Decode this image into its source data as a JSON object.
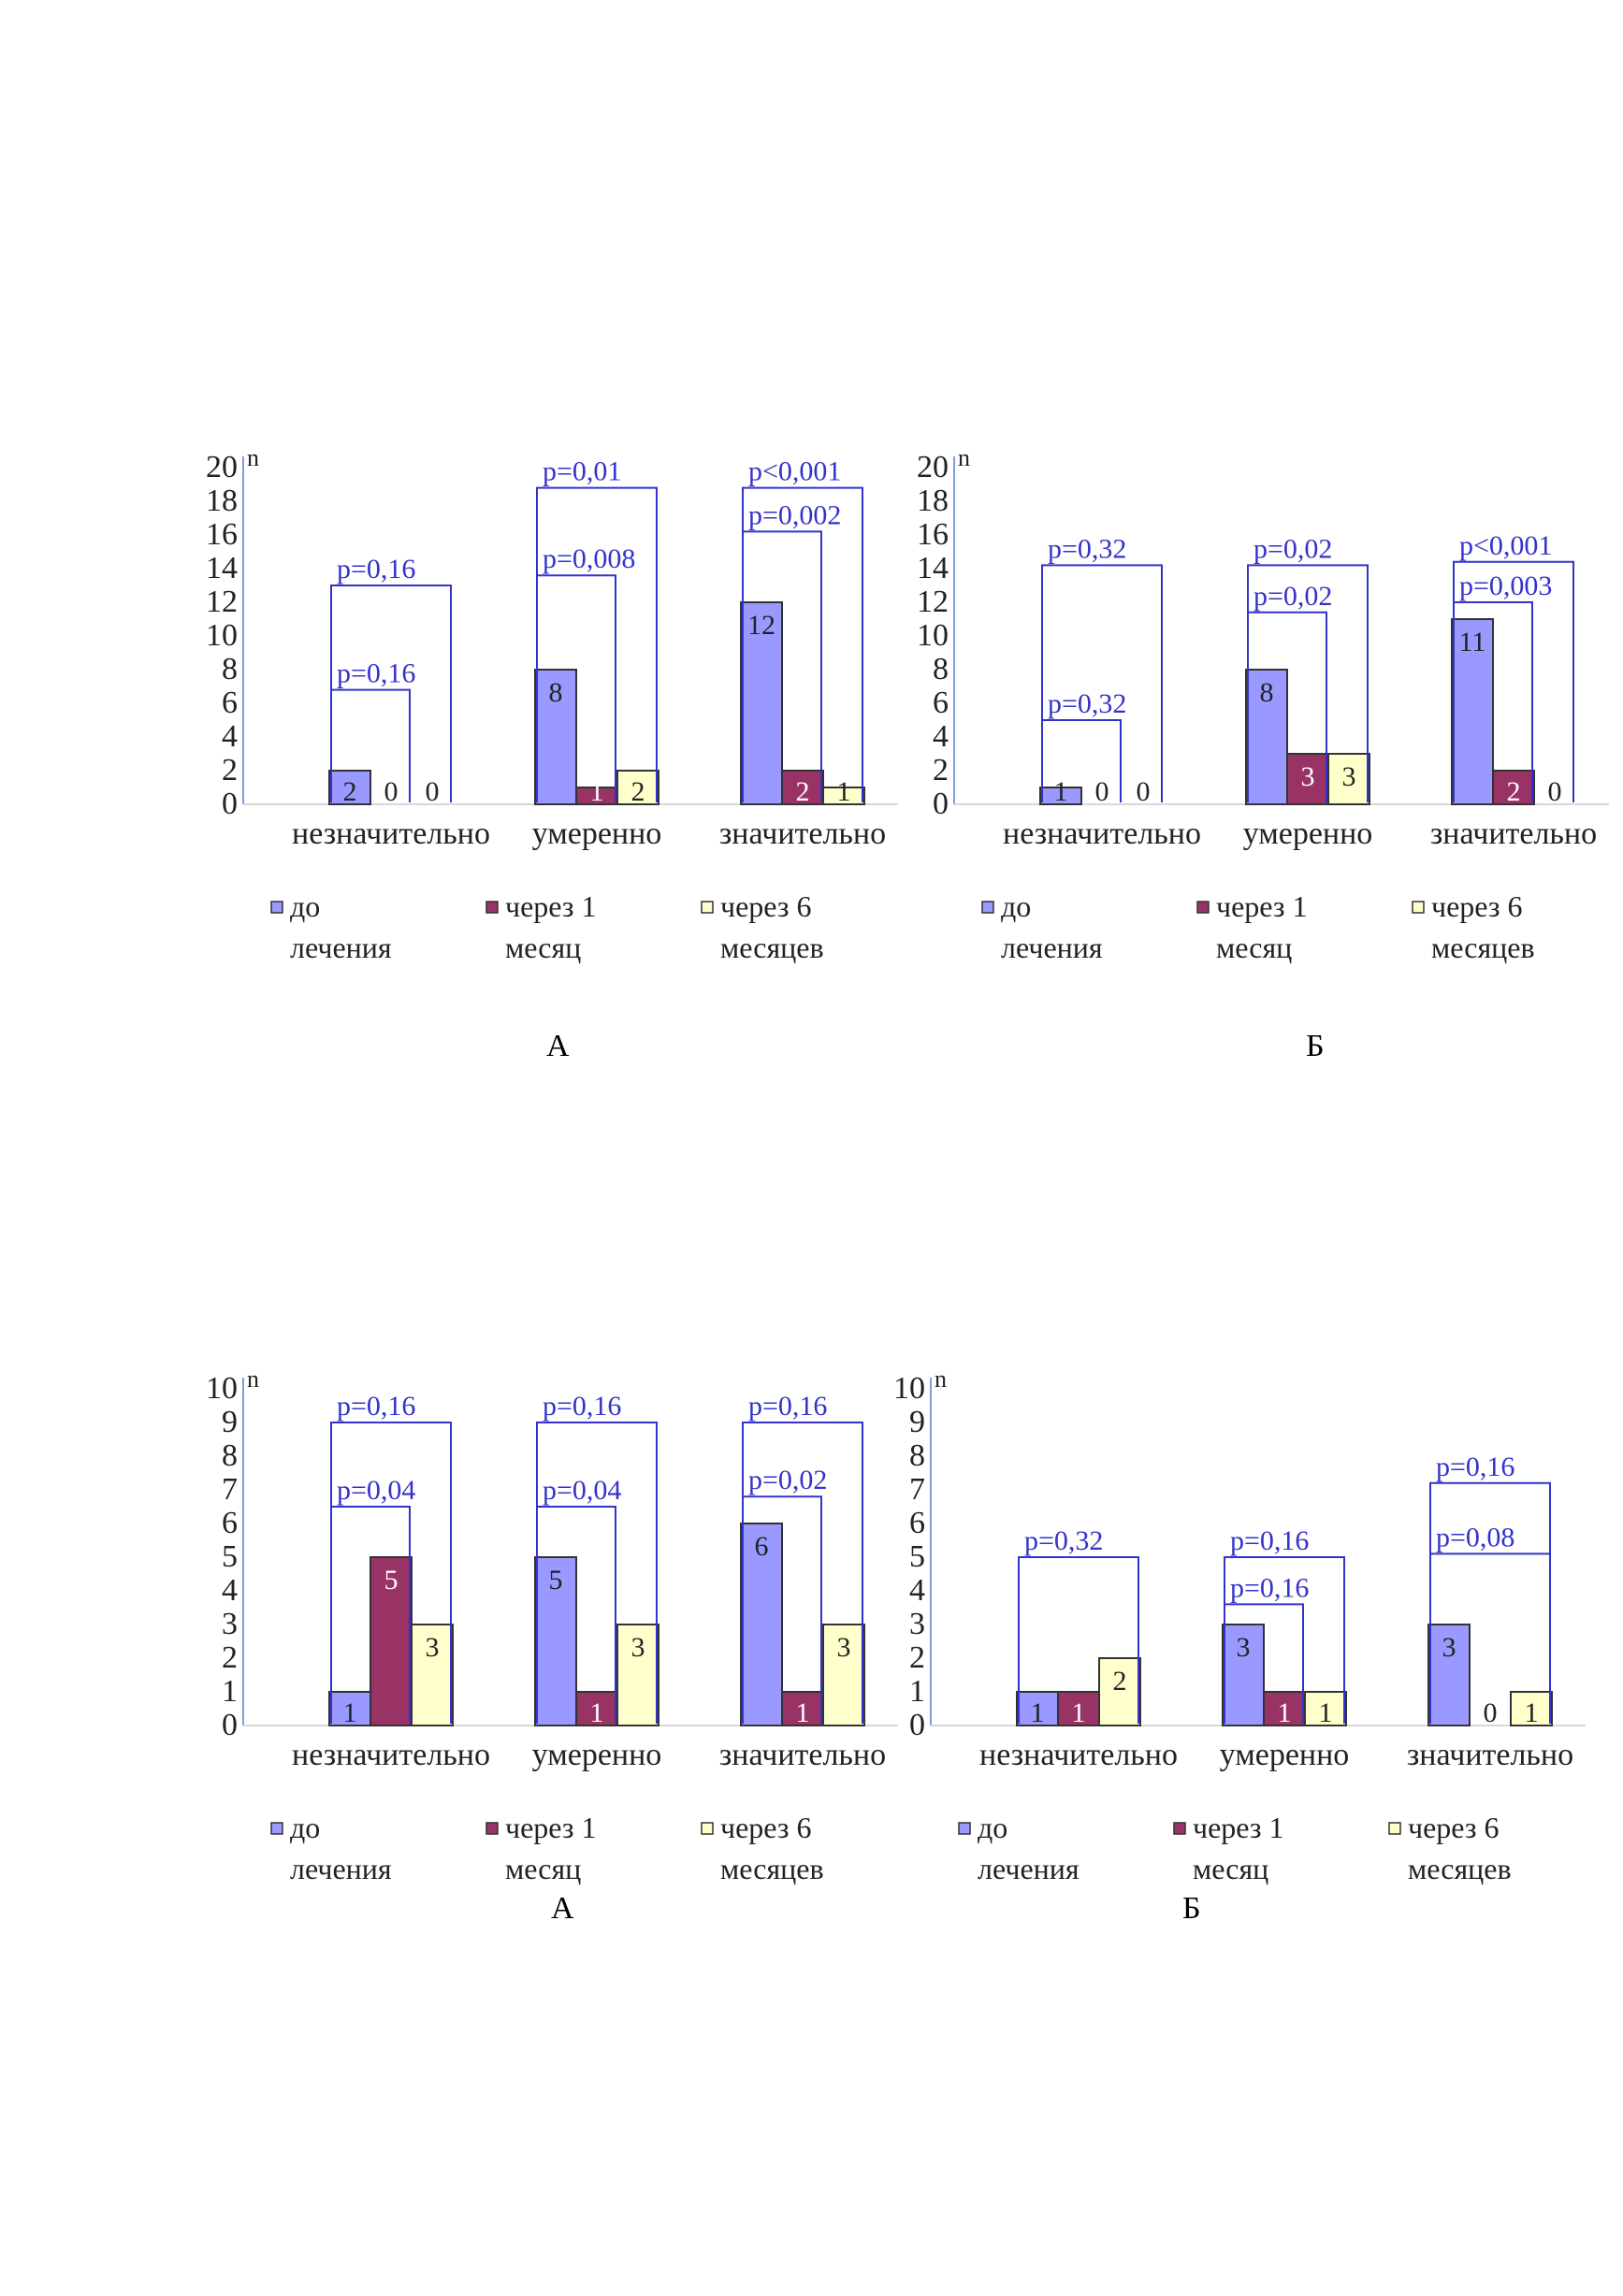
{
  "colors": {
    "before": "#9999ff",
    "month1": "#993366",
    "month6": "#ffffcc",
    "pvalue": "#3333cc",
    "axis": "#7f9fdf"
  },
  "legend": [
    {
      "line1": "до",
      "line2": "лечения"
    },
    {
      "line1": "через 1",
      "line2": "месяц"
    },
    {
      "line1": "через 6",
      "line2": "месяцев"
    }
  ],
  "panels": [
    "А",
    "Б",
    "А",
    "Б"
  ],
  "chart_data": [
    {
      "type": "bar",
      "ylabel": "n",
      "ylim": [
        0,
        20
      ],
      "yticks": [
        "0",
        "2",
        "4",
        "6",
        "8",
        "10",
        "12",
        "14",
        "16",
        "18",
        "20"
      ],
      "categories": [
        "незначительно",
        "умеренно",
        "значительно"
      ],
      "series": [
        {
          "name": "до лечения",
          "values": [
            2,
            8,
            12
          ]
        },
        {
          "name": "через 1 месяц",
          "values": [
            0,
            1,
            2
          ]
        },
        {
          "name": "через 6 месяцев",
          "values": [
            0,
            2,
            1
          ]
        }
      ],
      "brackets": [
        {
          "category": 0,
          "to": 1,
          "level": 6.8,
          "text": "p=0,16"
        },
        {
          "category": 0,
          "to": 2,
          "level": 13,
          "text": "p=0,16"
        },
        {
          "category": 1,
          "to": 1,
          "level": 13.6,
          "text": "p=0,008"
        },
        {
          "category": 1,
          "to": 2,
          "level": 18.8,
          "text": "p=0,01"
        },
        {
          "category": 2,
          "to": 1,
          "level": 16.2,
          "text": "p=0,002"
        },
        {
          "category": 2,
          "to": 2,
          "level": 18.8,
          "text": "p<0,001"
        }
      ]
    },
    {
      "type": "bar",
      "ylabel": "n",
      "ylim": [
        0,
        20
      ],
      "yticks": [
        "0",
        "2",
        "4",
        "6",
        "8",
        "10",
        "12",
        "14",
        "16",
        "18",
        "20"
      ],
      "categories": [
        "незначительно",
        "умеренно",
        "значительно"
      ],
      "series": [
        {
          "name": "до лечения",
          "values": [
            1,
            8,
            11
          ]
        },
        {
          "name": "через 1 месяц",
          "values": [
            0,
            3,
            2
          ]
        },
        {
          "name": "через 6 месяцев",
          "values": [
            0,
            3,
            0
          ]
        }
      ],
      "brackets": [
        {
          "category": 0,
          "to": 1,
          "level": 5,
          "text": "p=0,32"
        },
        {
          "category": 0,
          "to": 2,
          "level": 14.2,
          "text": "p=0,32"
        },
        {
          "category": 1,
          "to": 1,
          "level": 11.4,
          "text": "p=0,02"
        },
        {
          "category": 1,
          "to": 2,
          "level": 14.2,
          "text": "p=0,02"
        },
        {
          "category": 2,
          "to": 1,
          "level": 12,
          "text": "p=0,003"
        },
        {
          "category": 2,
          "to": 2,
          "level": 14.4,
          "text": "p<0,001"
        }
      ]
    },
    {
      "type": "bar",
      "ylabel": "n",
      "ylim": [
        0,
        10
      ],
      "yticks": [
        "0",
        "1",
        "2",
        "3",
        "4",
        "5",
        "6",
        "7",
        "8",
        "9",
        "10"
      ],
      "categories": [
        "незначительно",
        "умеренно",
        "значительно"
      ],
      "series": [
        {
          "name": "до лечения",
          "values": [
            1,
            5,
            6
          ]
        },
        {
          "name": "через 1 месяц",
          "values": [
            5,
            1,
            1
          ]
        },
        {
          "name": "через 6 месяцев",
          "values": [
            3,
            3,
            3
          ]
        }
      ],
      "brackets": [
        {
          "category": 0,
          "to": 1,
          "level": 6.5,
          "text": "p=0,04"
        },
        {
          "category": 0,
          "to": 2,
          "level": 9,
          "text": "p=0,16"
        },
        {
          "category": 1,
          "to": 1,
          "level": 6.5,
          "text": "p=0,04"
        },
        {
          "category": 1,
          "to": 2,
          "level": 9,
          "text": "p=0,16"
        },
        {
          "category": 2,
          "to": 1,
          "level": 6.8,
          "text": "p=0,02"
        },
        {
          "category": 2,
          "to": 2,
          "level": 9,
          "text": "p=0,16"
        }
      ]
    },
    {
      "type": "bar",
      "ylabel": "n",
      "ylim": [
        0,
        10
      ],
      "yticks": [
        "0",
        "1",
        "2",
        "3",
        "4",
        "5",
        "6",
        "7",
        "8",
        "9",
        "10"
      ],
      "categories": [
        "незначительно",
        "умеренно",
        "значительно"
      ],
      "series": [
        {
          "name": "до лечения",
          "values": [
            1,
            3,
            3
          ]
        },
        {
          "name": "через 1 месяц",
          "values": [
            1,
            1,
            0
          ]
        },
        {
          "name": "через 6 месяцев",
          "values": [
            2,
            1,
            1
          ]
        }
      ],
      "brackets": [
        {
          "category": 0,
          "to": 2,
          "level": 5,
          "text": "p=0,32"
        },
        {
          "category": 1,
          "to": 1,
          "level": 3.6,
          "text": "p=0,16"
        },
        {
          "category": 1,
          "to": 2,
          "level": 5,
          "text": "p=0,16"
        },
        {
          "category": 2,
          "to": 2,
          "level": 7.2,
          "text": "p=0,16"
        },
        {
          "category": 2,
          "to": 2,
          "level": 5.1,
          "text": "p=0,08"
        }
      ]
    }
  ]
}
